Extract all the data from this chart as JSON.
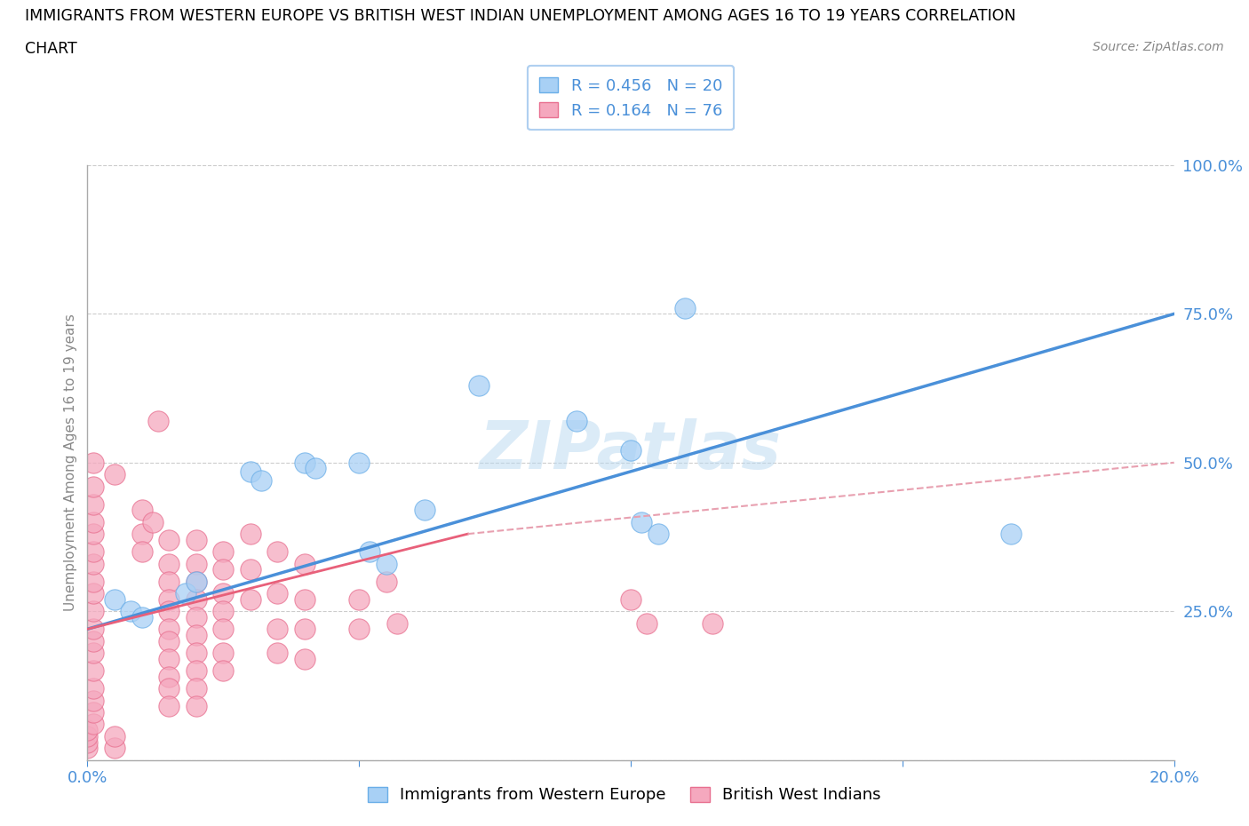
{
  "title_line1": "IMMIGRANTS FROM WESTERN EUROPE VS BRITISH WEST INDIAN UNEMPLOYMENT AMONG AGES 16 TO 19 YEARS CORRELATION",
  "title_line2": "CHART",
  "source": "Source: ZipAtlas.com",
  "ylabel": "Unemployment Among Ages 16 to 19 years",
  "xlim": [
    0.0,
    0.2
  ],
  "ylim": [
    0.0,
    1.0
  ],
  "xticks": [
    0.0,
    0.05,
    0.1,
    0.15,
    0.2
  ],
  "xtick_labels": [
    "0.0%",
    "",
    "",
    "",
    "20.0%"
  ],
  "yticks": [
    0.0,
    0.25,
    0.5,
    0.75,
    1.0
  ],
  "ytick_labels": [
    "",
    "25.0%",
    "50.0%",
    "75.0%",
    "100.0%"
  ],
  "blue_fill": "#a8d0f5",
  "blue_edge": "#6aaee8",
  "pink_fill": "#f5a8be",
  "pink_edge": "#e87090",
  "blue_trend_color": "#4a90d9",
  "pink_trend_color": "#e8607a",
  "pink_trend_dash_color": "#e8a0b0",
  "legend_R_blue": "R = 0.456",
  "legend_N_blue": "N = 20",
  "legend_R_pink": "R = 0.164",
  "legend_N_pink": "N = 76",
  "watermark": "ZIPatlas",
  "blue_dots": [
    [
      0.005,
      0.27
    ],
    [
      0.008,
      0.25
    ],
    [
      0.01,
      0.24
    ],
    [
      0.018,
      0.28
    ],
    [
      0.02,
      0.3
    ],
    [
      0.03,
      0.485
    ],
    [
      0.032,
      0.47
    ],
    [
      0.04,
      0.5
    ],
    [
      0.042,
      0.49
    ],
    [
      0.05,
      0.5
    ],
    [
      0.052,
      0.35
    ],
    [
      0.055,
      0.33
    ],
    [
      0.062,
      0.42
    ],
    [
      0.072,
      0.63
    ],
    [
      0.09,
      0.57
    ],
    [
      0.1,
      0.52
    ],
    [
      0.102,
      0.4
    ],
    [
      0.105,
      0.38
    ],
    [
      0.11,
      0.76
    ],
    [
      0.17,
      0.38
    ]
  ],
  "pink_dots": [
    [
      0.0,
      0.02
    ],
    [
      0.0,
      0.03
    ],
    [
      0.0,
      0.04
    ],
    [
      0.0,
      0.05
    ],
    [
      0.001,
      0.06
    ],
    [
      0.001,
      0.08
    ],
    [
      0.001,
      0.1
    ],
    [
      0.001,
      0.12
    ],
    [
      0.001,
      0.15
    ],
    [
      0.001,
      0.18
    ],
    [
      0.001,
      0.2
    ],
    [
      0.001,
      0.22
    ],
    [
      0.001,
      0.25
    ],
    [
      0.001,
      0.28
    ],
    [
      0.001,
      0.3
    ],
    [
      0.001,
      0.33
    ],
    [
      0.001,
      0.35
    ],
    [
      0.001,
      0.38
    ],
    [
      0.001,
      0.4
    ],
    [
      0.001,
      0.43
    ],
    [
      0.001,
      0.46
    ],
    [
      0.001,
      0.5
    ],
    [
      0.005,
      0.48
    ],
    [
      0.01,
      0.42
    ],
    [
      0.01,
      0.38
    ],
    [
      0.01,
      0.35
    ],
    [
      0.012,
      0.4
    ],
    [
      0.015,
      0.37
    ],
    [
      0.015,
      0.33
    ],
    [
      0.015,
      0.3
    ],
    [
      0.015,
      0.27
    ],
    [
      0.015,
      0.25
    ],
    [
      0.015,
      0.22
    ],
    [
      0.015,
      0.2
    ],
    [
      0.015,
      0.17
    ],
    [
      0.015,
      0.14
    ],
    [
      0.015,
      0.12
    ],
    [
      0.015,
      0.09
    ],
    [
      0.02,
      0.37
    ],
    [
      0.02,
      0.33
    ],
    [
      0.02,
      0.3
    ],
    [
      0.02,
      0.27
    ],
    [
      0.02,
      0.24
    ],
    [
      0.02,
      0.21
    ],
    [
      0.02,
      0.18
    ],
    [
      0.02,
      0.15
    ],
    [
      0.02,
      0.12
    ],
    [
      0.02,
      0.09
    ],
    [
      0.025,
      0.35
    ],
    [
      0.025,
      0.32
    ],
    [
      0.025,
      0.28
    ],
    [
      0.025,
      0.25
    ],
    [
      0.025,
      0.22
    ],
    [
      0.025,
      0.18
    ],
    [
      0.025,
      0.15
    ],
    [
      0.03,
      0.38
    ],
    [
      0.03,
      0.32
    ],
    [
      0.03,
      0.27
    ],
    [
      0.035,
      0.35
    ],
    [
      0.035,
      0.28
    ],
    [
      0.035,
      0.22
    ],
    [
      0.035,
      0.18
    ],
    [
      0.04,
      0.33
    ],
    [
      0.04,
      0.27
    ],
    [
      0.04,
      0.22
    ],
    [
      0.04,
      0.17
    ],
    [
      0.05,
      0.27
    ],
    [
      0.05,
      0.22
    ],
    [
      0.055,
      0.3
    ],
    [
      0.057,
      0.23
    ],
    [
      0.1,
      0.27
    ],
    [
      0.103,
      0.23
    ],
    [
      0.115,
      0.23
    ],
    [
      0.013,
      0.57
    ],
    [
      0.005,
      0.02
    ],
    [
      0.005,
      0.04
    ]
  ],
  "blue_trend_x0": 0.0,
  "blue_trend_y0": 0.22,
  "blue_trend_x1": 0.2,
  "blue_trend_y1": 0.75,
  "pink_trend_solid_x0": 0.0,
  "pink_trend_solid_y0": 0.22,
  "pink_trend_solid_x1": 0.07,
  "pink_trend_solid_y1": 0.38,
  "pink_trend_dash_x0": 0.07,
  "pink_trend_dash_y0": 0.38,
  "pink_trend_dash_x1": 0.2,
  "pink_trend_dash_y1": 0.5
}
